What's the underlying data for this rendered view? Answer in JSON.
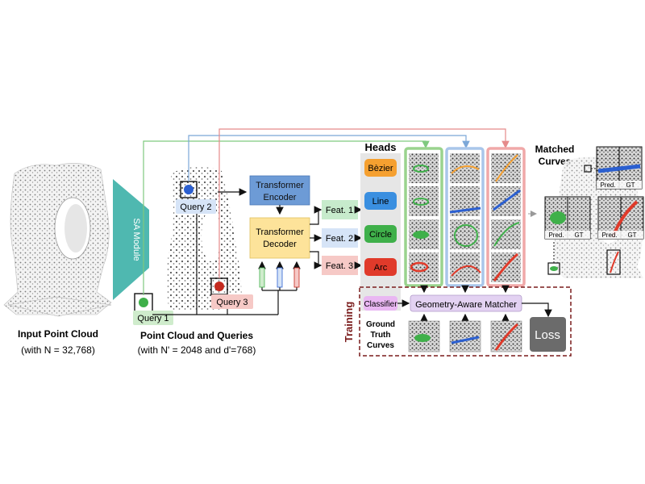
{
  "input": {
    "title": "Input Point Cloud",
    "subtitle": "(with N = 32,768)"
  },
  "sa_module": {
    "label": "SA Module"
  },
  "queries": {
    "title": "Point Cloud and Queries",
    "subtitle": "(with N' = 2048 and d'=768)",
    "q1": "Query 1",
    "q2": "Query 2",
    "q3": "Query 3"
  },
  "encoder": {
    "label_l1": "Transformer",
    "label_l2": "Encoder"
  },
  "decoder": {
    "label_l1": "Transformer",
    "label_l2": "Decoder"
  },
  "features": [
    "Feat. 1",
    "Feat. 2",
    "Feat. 3"
  ],
  "heads": {
    "title": "Heads",
    "items": [
      "Bèzier",
      "Line",
      "Circle",
      "Arc"
    ],
    "classifier": "Classifier"
  },
  "training": {
    "label": "Training",
    "matcher": "Geometry-Aware Matcher",
    "gt_l1": "Ground",
    "gt_l2": "Truth",
    "gt_l3": "Curves",
    "loss": "Loss"
  },
  "matched": {
    "title_l1": "Matched",
    "title_l2": "Curves",
    "pred": "Pred.",
    "gt": "GT"
  },
  "colors": {
    "green": "#7fc97f",
    "blue": "#7ba7d8",
    "red": "#e58a8a",
    "encoder": "#6d9bd6",
    "decoder": "#fde39a",
    "bezier": "#f5a030",
    "line": "#3a8fe0",
    "circle": "#3fb04a",
    "arc": "#e03a2a",
    "teal": "#4fb8b0",
    "classifier": "#e9b7f2",
    "matcher": "#e3d2f2",
    "loss": "#6b6b6b",
    "training_border": "#7a1c1c"
  }
}
